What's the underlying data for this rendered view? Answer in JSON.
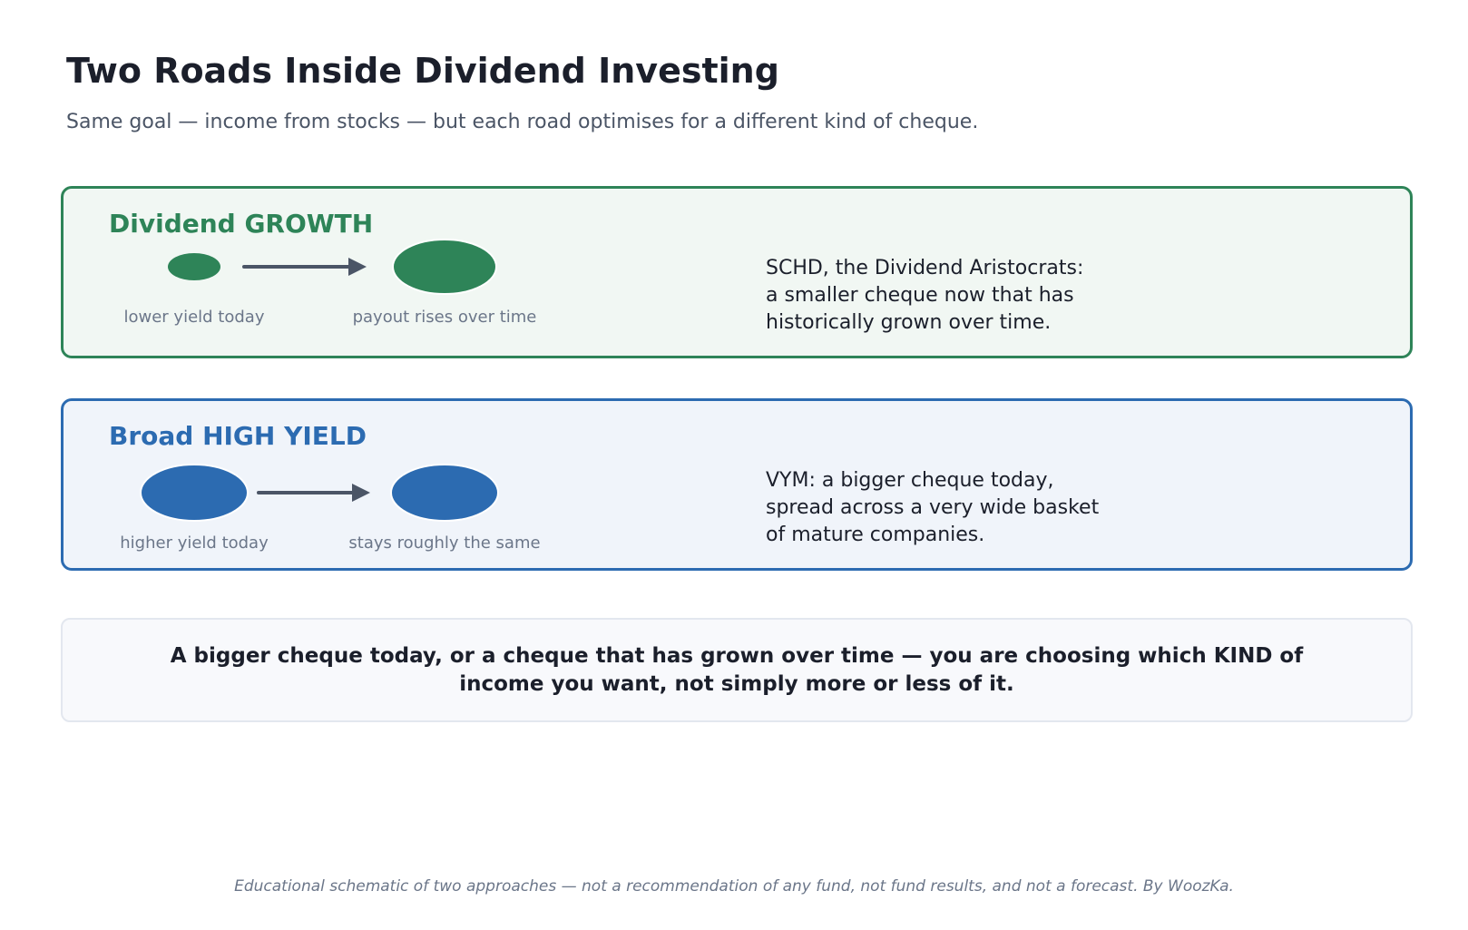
{
  "header": {
    "title": "Two Roads Inside Dividend Investing",
    "subtitle": "Same goal — income from stocks — but each road optimises for a different kind of cheque."
  },
  "panels": [
    {
      "heading": "Dividend GROWTH",
      "color": "#2e8458",
      "background": "#f1f7f3",
      "start_caption": "lower yield today",
      "end_caption": "payout rises over time",
      "description_lines": [
        "SCHD, the Dividend Aristocrats:",
        "a smaller cheque now that has",
        "historically grown over time."
      ]
    },
    {
      "heading": "Broad HIGH YIELD",
      "color": "#2c6bb1",
      "background": "#f0f4fa",
      "start_caption": "higher yield today",
      "end_caption": "stays roughly the same",
      "description_lines": [
        "VYM: a bigger cheque today,",
        "spread across a very wide basket",
        "of mature companies."
      ]
    }
  ],
  "takeaway": {
    "lines": [
      "A bigger cheque today, or a cheque that has grown over time — you are choosing which KIND of",
      "income you want, not simply more or less of it."
    ]
  },
  "footer": {
    "note": "Educational schematic of two approaches — not a recommendation of any fund, not fund results, and not a forecast. By WoozKa."
  },
  "colors": {
    "title": "#1b1f2b",
    "arrow": "#4b5566",
    "caption": "#6b7689"
  }
}
